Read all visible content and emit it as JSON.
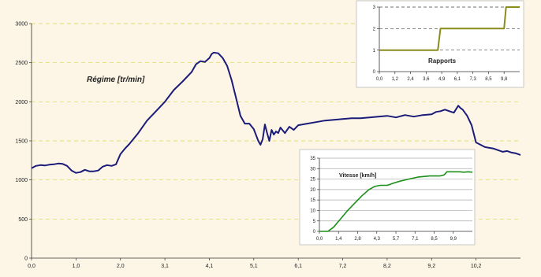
{
  "chart_data": [
    {
      "id": "regime",
      "type": "line",
      "annotation": "Régime [tr/min]",
      "color": "#1b1b7a",
      "xlim": [
        0,
        11.0
      ],
      "ylim": [
        0,
        3000
      ],
      "x_ticks": [
        "0,0",
        "1,0",
        "2,0",
        "3,1",
        "4,1",
        "5,1",
        "6,1",
        "7,2",
        "8,2",
        "9,2",
        "10,2"
      ],
      "y_ticks": [
        0,
        500,
        1000,
        1500,
        2000,
        2500,
        3000
      ],
      "grid": "horizontal-dashed",
      "series": [
        {
          "x": [
            0,
            0.1,
            0.2,
            0.3,
            0.4,
            0.5,
            0.6,
            0.7,
            0.8,
            0.9,
            1.0,
            1.1,
            1.2,
            1.3,
            1.4,
            1.5,
            1.6,
            1.7,
            1.8,
            1.9,
            2.0,
            2.1,
            2.2,
            2.4,
            2.6,
            2.8,
            3.0,
            3.2,
            3.4,
            3.6,
            3.7,
            3.8,
            3.9,
            4.0,
            4.05,
            4.1,
            4.2,
            4.3,
            4.4,
            4.5,
            4.6,
            4.7,
            4.8,
            4.9,
            5.0,
            5.1,
            5.15,
            5.2,
            5.25,
            5.3,
            5.35,
            5.4,
            5.45,
            5.5,
            5.55,
            5.6,
            5.7,
            5.8,
            5.9,
            6.0,
            6.2,
            6.4,
            6.6,
            6.8,
            7.0,
            7.2,
            7.4,
            7.6,
            7.8,
            8.0,
            8.2,
            8.4,
            8.6,
            8.8,
            9.0,
            9.1,
            9.2,
            9.3,
            9.4,
            9.5,
            9.6,
            9.65,
            9.7,
            9.8,
            9.9,
            10.0,
            10.2,
            10.4,
            10.5,
            10.6,
            10.7,
            10.8,
            10.9,
            11.0
          ],
          "y": [
            1150,
            1180,
            1190,
            1185,
            1195,
            1200,
            1210,
            1205,
            1180,
            1120,
            1090,
            1100,
            1130,
            1110,
            1110,
            1120,
            1170,
            1190,
            1180,
            1200,
            1330,
            1400,
            1460,
            1600,
            1760,
            1880,
            2000,
            2150,
            2260,
            2380,
            2480,
            2520,
            2510,
            2560,
            2610,
            2630,
            2620,
            2560,
            2460,
            2280,
            2050,
            1820,
            1720,
            1720,
            1650,
            1500,
            1450,
            1520,
            1710,
            1600,
            1500,
            1640,
            1580,
            1620,
            1600,
            1670,
            1600,
            1680,
            1640,
            1700,
            1720,
            1740,
            1760,
            1770,
            1780,
            1790,
            1790,
            1800,
            1810,
            1820,
            1800,
            1830,
            1810,
            1830,
            1840,
            1870,
            1880,
            1900,
            1880,
            1860,
            1950,
            1920,
            1900,
            1820,
            1700,
            1480,
            1420,
            1400,
            1380,
            1360,
            1370,
            1350,
            1340,
            1320
          ]
        }
      ]
    },
    {
      "id": "rapports",
      "type": "line",
      "annotation": "Rapports",
      "color": "#8a8c1c",
      "xlim": [
        0,
        10.8
      ],
      "ylim": [
        0,
        3
      ],
      "x_ticks": [
        "0,0",
        "1,2",
        "2,4",
        "3,6",
        "4,9",
        "6,1",
        "7,3",
        "8,5",
        "9,8"
      ],
      "y_ticks": [
        0,
        1,
        2,
        3
      ],
      "grid": "horizontal-dashed",
      "series": [
        {
          "x": [
            0,
            4.5,
            4.7,
            9.6,
            9.75,
            10.8
          ],
          "y": [
            1,
            1,
            2,
            2,
            3,
            3
          ]
        }
      ]
    },
    {
      "id": "vitesse",
      "type": "line",
      "annotation": "Vitesse [km/h]",
      "color": "#1a8f1a",
      "xlim": [
        0,
        10.8
      ],
      "ylim": [
        0,
        35
      ],
      "x_ticks": [
        "0,0",
        "1,4",
        "2,8",
        "4,3",
        "5,7",
        "7,1",
        "8,5",
        "9,9"
      ],
      "y_ticks": [
        0,
        5,
        10,
        15,
        20,
        25,
        30,
        35
      ],
      "grid": "horizontal-solid",
      "series": [
        {
          "x": [
            0,
            0.6,
            1.0,
            1.5,
            2.0,
            2.5,
            3.0,
            3.5,
            3.9,
            4.3,
            4.8,
            5.2,
            5.7,
            6.3,
            7.0,
            7.8,
            8.5,
            8.8,
            9.0,
            9.4,
            9.9,
            10.2,
            10.5,
            10.8
          ],
          "y": [
            0,
            0,
            2,
            6,
            10,
            13.5,
            17,
            20,
            21.5,
            22,
            22,
            23,
            24,
            25,
            26,
            26.5,
            26.5,
            27,
            28.5,
            28.5,
            28.5,
            28.3,
            28.5,
            28.3
          ]
        }
      ]
    }
  ]
}
